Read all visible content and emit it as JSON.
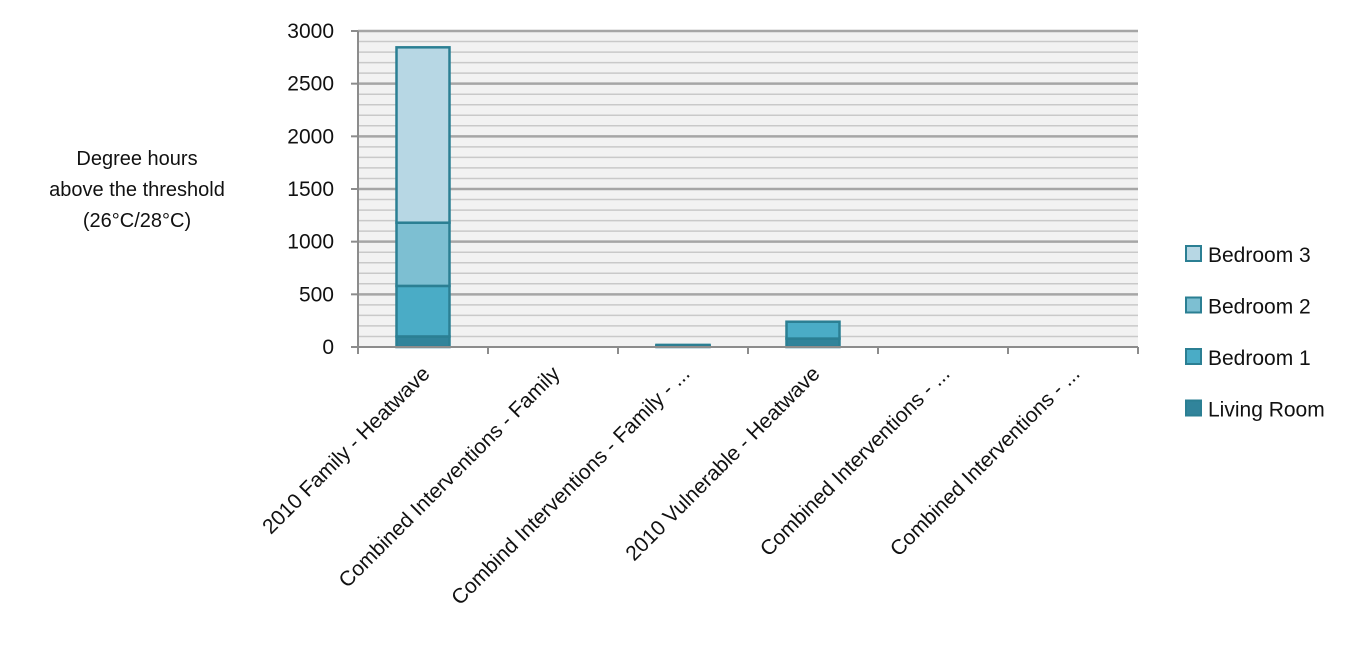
{
  "chart_data": {
    "type": "bar",
    "stacked": true,
    "title": "",
    "xlabel": "",
    "ylabel_lines": [
      "Degree hours",
      "above the threshold",
      "(26°C/28°C)"
    ],
    "ylim": [
      0,
      3000
    ],
    "yticks": [
      0,
      500,
      1000,
      1500,
      2000,
      2500,
      3000
    ],
    "grid": true,
    "legend_position": "right",
    "categories": [
      "2010 Family - Heatwave",
      "Combined Interventions - Family",
      "Combind Interventions - Family - ...",
      "2010 Vulnerable - Heatwave",
      "Combined Interventions - ...",
      "Combined Interventions - ..."
    ],
    "series": [
      {
        "name": "Living Room",
        "color": "#31849b",
        "values": [
          100,
          0,
          5,
          80,
          0,
          0
        ]
      },
      {
        "name": "Bedroom 1",
        "color": "#4aacc6",
        "values": [
          480,
          0,
          5,
          160,
          0,
          0
        ]
      },
      {
        "name": "Bedroom 2",
        "color": "#7dbfd2",
        "values": [
          600,
          0,
          5,
          0,
          0,
          0
        ]
      },
      {
        "name": "Bedroom 3",
        "color": "#b7d7e4",
        "values": [
          1665,
          0,
          5,
          0,
          0,
          0
        ]
      }
    ],
    "legend_order": [
      "Bedroom 3",
      "Bedroom 2",
      "Bedroom 1",
      "Living Room"
    ],
    "colors": {
      "bar_stroke": "#2b7f93",
      "grid_major": "#a6a6a6",
      "grid_minor": "#c9c9c9",
      "plot_bg": "#f2f2f2"
    }
  }
}
